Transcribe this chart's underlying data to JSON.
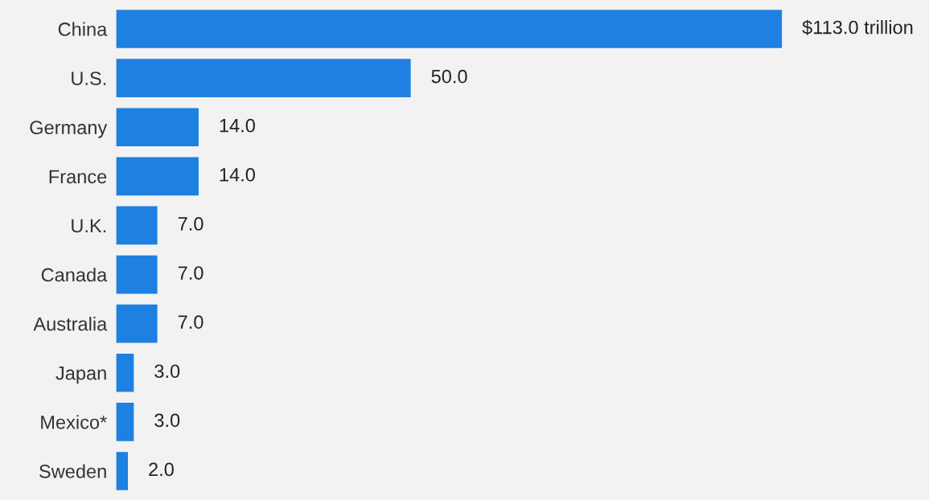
{
  "chart_data": {
    "type": "bar",
    "orientation": "horizontal",
    "categories": [
      "China",
      "U.S.",
      "Germany",
      "France",
      "U.K.",
      "Canada",
      "Australia",
      "Japan",
      "Mexico*",
      "Sweden"
    ],
    "values": [
      113.0,
      50.0,
      14.0,
      14.0,
      7.0,
      7.0,
      7.0,
      3.0,
      3.0,
      2.0
    ],
    "value_labels": [
      "$113.0 trillion",
      "50.0",
      "14.0",
      "14.0",
      "7.0",
      "7.0",
      "7.0",
      "3.0",
      "3.0",
      "2.0"
    ],
    "color": "#1e80e0",
    "tick_labels": "y",
    "grid": false,
    "legend": false
  }
}
